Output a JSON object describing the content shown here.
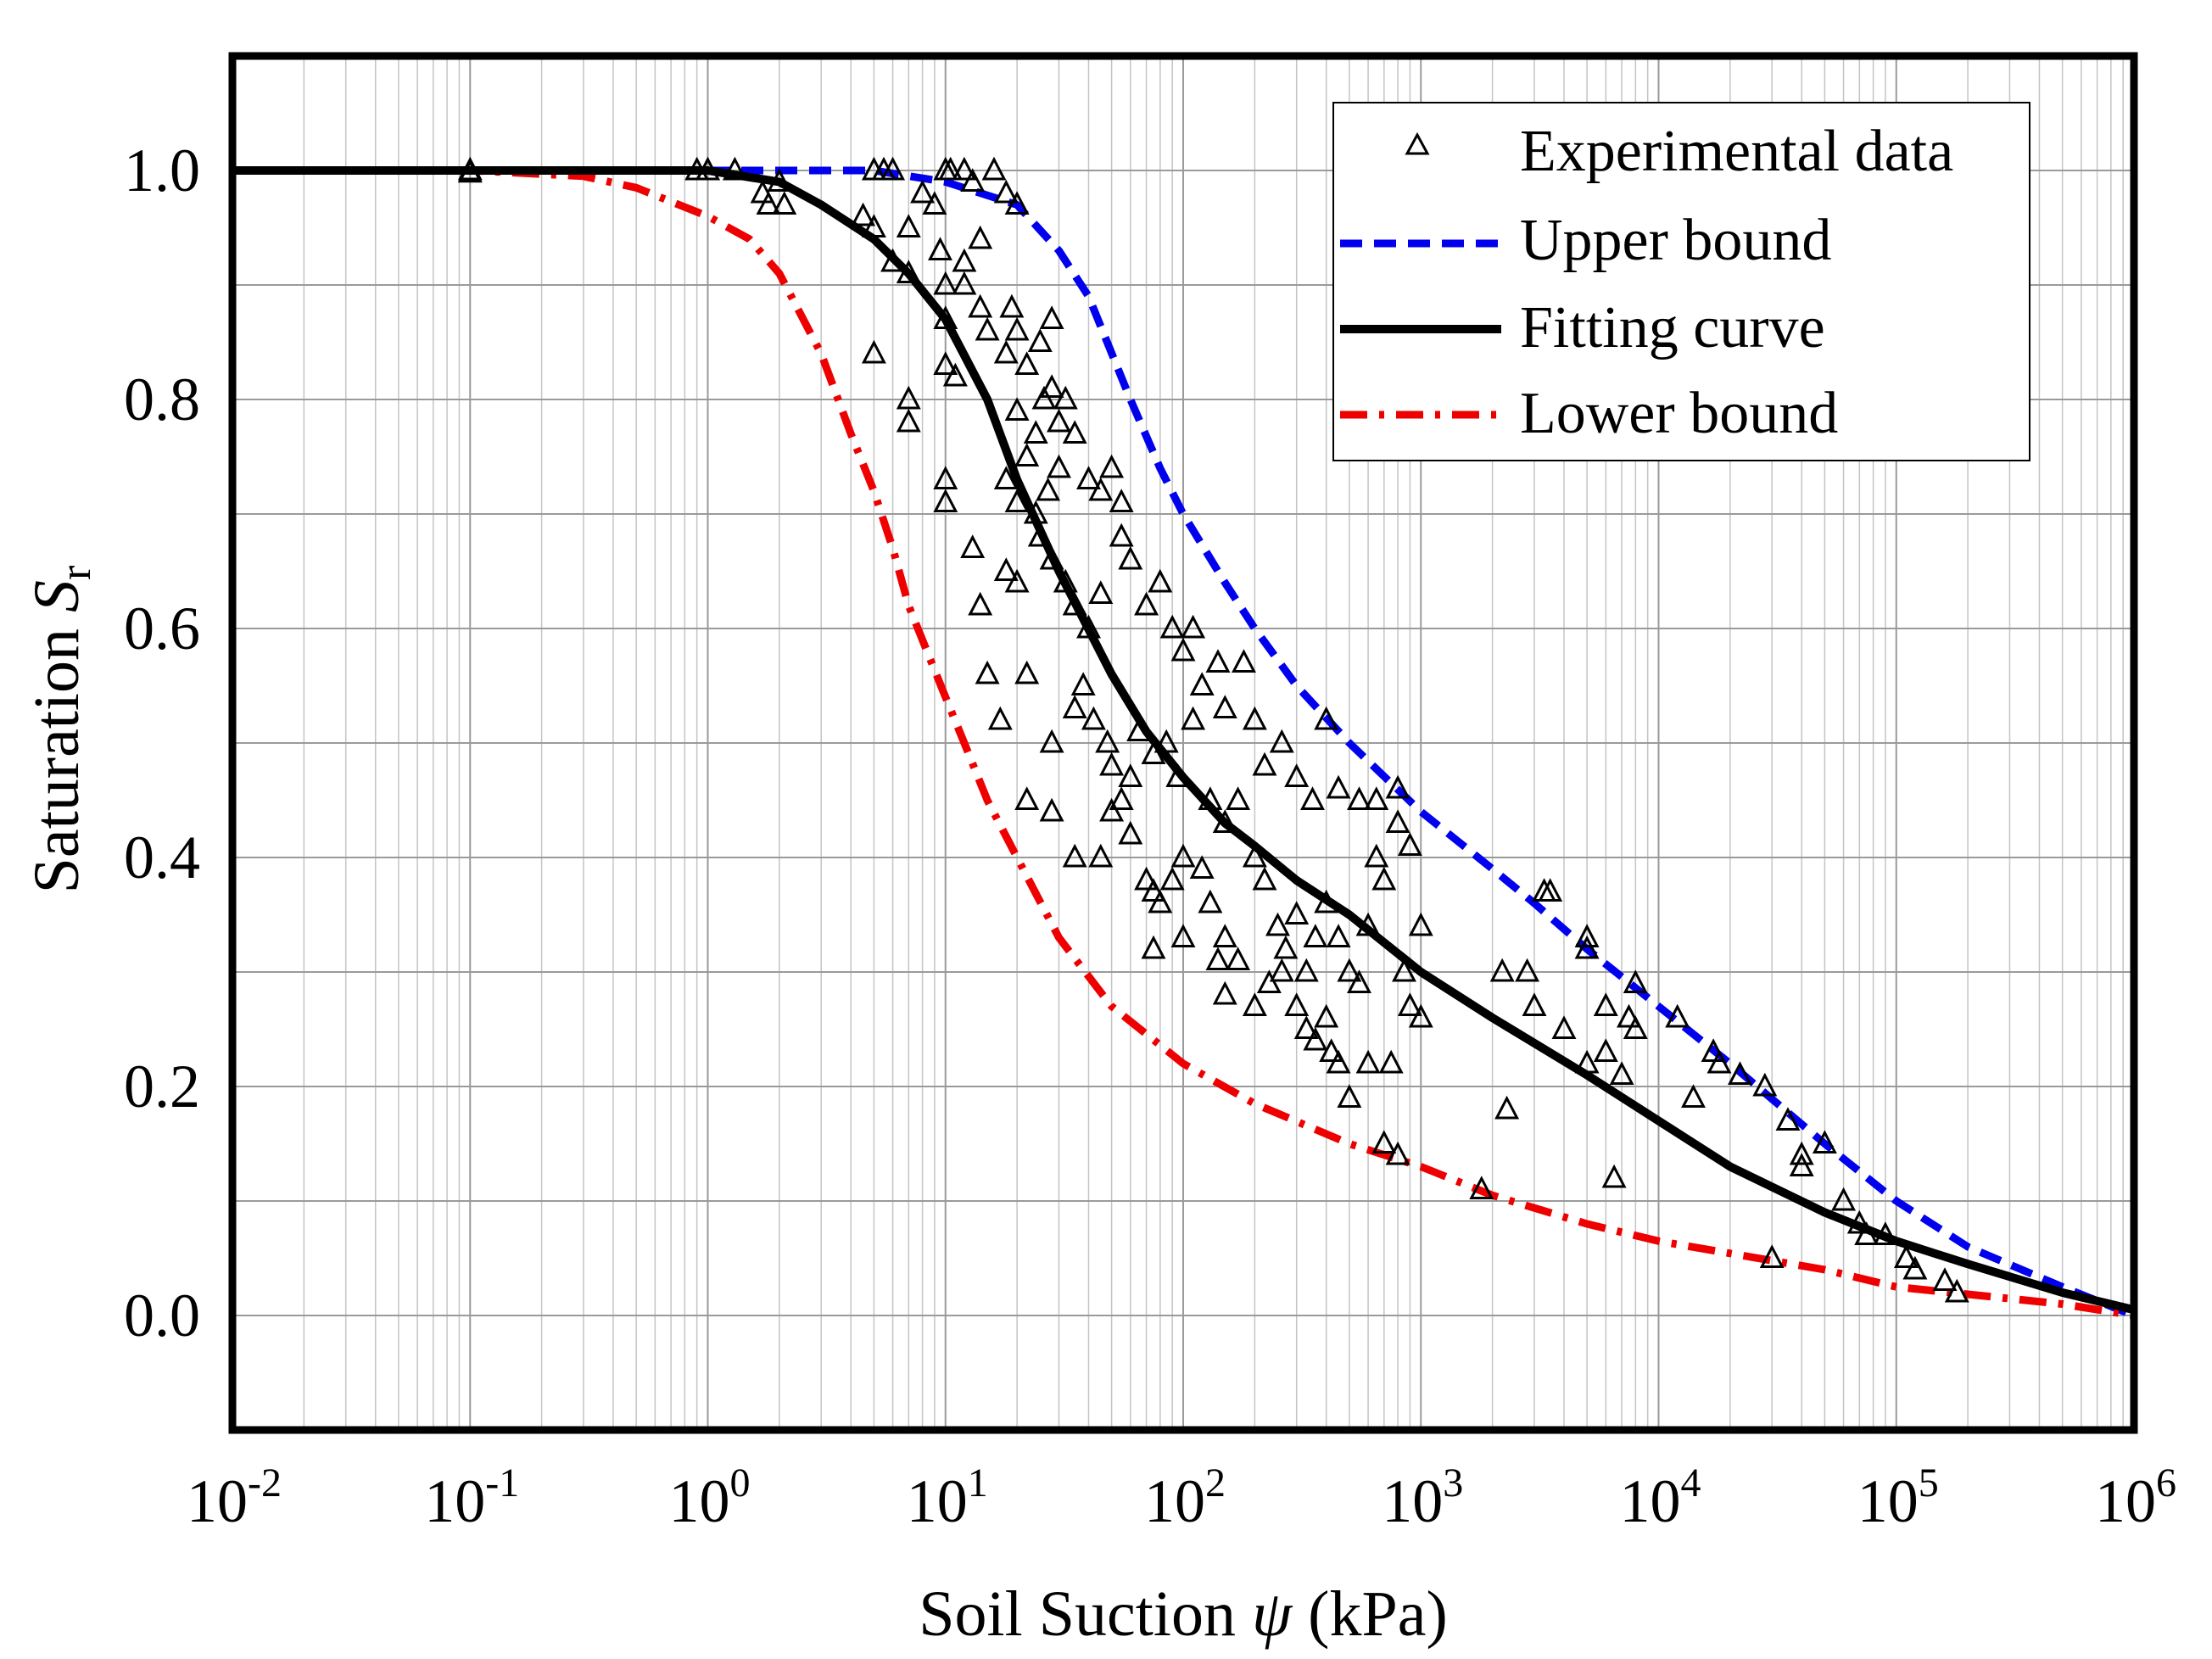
{
  "chart_data": {
    "type": "scatter",
    "xscale": "log",
    "xlim": [
      0.01,
      1000000
    ],
    "ylim": [
      -0.1,
      1.1
    ],
    "grid": true,
    "legend_position": "top-right",
    "xlabel": {
      "prefix": "Soil Suction ",
      "symbol": "ψ",
      "suffix": " (kPa)"
    },
    "ylabel": {
      "prefix": "Saturation ",
      "symbol": "S",
      "subscript": "r"
    },
    "x_ticks": [
      {
        "base": "10",
        "exp": "-2"
      },
      {
        "base": "10",
        "exp": "-1"
      },
      {
        "base": "10",
        "exp": "0"
      },
      {
        "base": "10",
        "exp": "1"
      },
      {
        "base": "10",
        "exp": "2"
      },
      {
        "base": "10",
        "exp": "3"
      },
      {
        "base": "10",
        "exp": "4"
      },
      {
        "base": "10",
        "exp": "5"
      },
      {
        "base": "10",
        "exp": "6"
      }
    ],
    "y_ticks": [
      "0.0",
      "0.2",
      "0.4",
      "0.6",
      "0.8",
      "1.0"
    ],
    "legend": {
      "experimental": "Experimental data",
      "upper": "Upper bound",
      "fitting": "Fitting curve",
      "lower": "Lower bound"
    },
    "colors": {
      "experimental": "#000000",
      "upper": "#0000ee",
      "fitting": "#000000",
      "lower": "#ee0000"
    },
    "series": [
      {
        "name": "Upper bound",
        "style": "dashed",
        "color": "#0000ee",
        "x": [
          0.01,
          1,
          2,
          5,
          10,
          20,
          30,
          40,
          60,
          80,
          100,
          150,
          200,
          300,
          500,
          1000,
          2000,
          3000,
          5000,
          10000,
          20000,
          50000,
          100000,
          200000,
          500000,
          1000000
        ],
        "y": [
          1.0,
          1.0,
          1.0,
          1.0,
          0.99,
          0.97,
          0.93,
          0.89,
          0.8,
          0.74,
          0.7,
          0.64,
          0.6,
          0.55,
          0.5,
          0.44,
          0.39,
          0.36,
          0.32,
          0.27,
          0.22,
          0.15,
          0.1,
          0.06,
          0.025,
          0.0
        ]
      },
      {
        "name": "Fitting curve",
        "style": "solid",
        "color": "#000000",
        "x": [
          0.01,
          1,
          2,
          3,
          5,
          7,
          10,
          15,
          20,
          30,
          50,
          70,
          100,
          150,
          200,
          300,
          500,
          1000,
          2000,
          5000,
          10000,
          20000,
          50000,
          100000,
          200000,
          500000,
          1000000
        ],
        "y": [
          1.0,
          1.0,
          0.99,
          0.97,
          0.94,
          0.91,
          0.87,
          0.8,
          0.73,
          0.65,
          0.56,
          0.51,
          0.47,
          0.43,
          0.41,
          0.38,
          0.35,
          0.3,
          0.26,
          0.21,
          0.17,
          0.13,
          0.09,
          0.065,
          0.045,
          0.02,
          0.005
        ]
      },
      {
        "name": "Lower bound",
        "style": "dashdot",
        "color": "#ee0000",
        "x": [
          0.01,
          0.1,
          0.3,
          0.5,
          1,
          1.5,
          2,
          3,
          4,
          5,
          6,
          7,
          8,
          10,
          12,
          15,
          20,
          30,
          50,
          100,
          200,
          500,
          1000,
          2000,
          5000,
          10000,
          50000,
          100000,
          500000,
          1000000
        ],
        "y": [
          1.0,
          1.0,
          0.995,
          0.985,
          0.96,
          0.94,
          0.91,
          0.84,
          0.77,
          0.72,
          0.67,
          0.62,
          0.59,
          0.54,
          0.5,
          0.45,
          0.4,
          0.33,
          0.27,
          0.22,
          0.185,
          0.15,
          0.13,
          0.105,
          0.08,
          0.065,
          0.04,
          0.025,
          0.01,
          0.0
        ]
      }
    ],
    "experimental_data": [
      [
        0.1,
        1.0
      ],
      [
        0.1,
        0.998
      ],
      [
        0.9,
        1.0
      ],
      [
        1.0,
        1.0
      ],
      [
        1.0,
        1.0
      ],
      [
        1.3,
        1.0
      ],
      [
        1.8,
        0.97
      ],
      [
        2.0,
        0.99
      ],
      [
        1.7,
        0.98
      ],
      [
        2.1,
        0.97
      ],
      [
        4.5,
        0.96
      ],
      [
        5.0,
        1.0
      ],
      [
        5.5,
        1.0
      ],
      [
        6.0,
        1.0
      ],
      [
        5.0,
        0.95
      ],
      [
        6.0,
        0.92
      ],
      [
        7.0,
        0.91
      ],
      [
        7.0,
        0.95
      ],
      [
        8.0,
        0.98
      ],
      [
        9.0,
        0.97
      ],
      [
        9.5,
        0.93
      ],
      [
        10.0,
        1.0
      ],
      [
        10.5,
        1.0
      ],
      [
        12.0,
        1.0
      ],
      [
        13.0,
        0.99
      ],
      [
        16.0,
        1.0
      ],
      [
        18.0,
        0.98
      ],
      [
        20.0,
        0.97
      ],
      [
        5.0,
        0.84
      ],
      [
        7.0,
        0.8
      ],
      [
        7.0,
        0.78
      ],
      [
        10.0,
        0.9
      ],
      [
        10.0,
        0.87
      ],
      [
        12.0,
        0.9
      ],
      [
        14.0,
        0.88
      ],
      [
        10.0,
        0.83
      ],
      [
        11.0,
        0.82
      ],
      [
        12.0,
        0.92
      ],
      [
        14.0,
        0.94
      ],
      [
        15.0,
        0.86
      ],
      [
        18.0,
        0.84
      ],
      [
        19.0,
        0.88
      ],
      [
        20.0,
        0.86
      ],
      [
        22.0,
        0.83
      ],
      [
        25.0,
        0.85
      ],
      [
        28.0,
        0.87
      ],
      [
        20.0,
        0.79
      ],
      [
        22.0,
        0.75
      ],
      [
        24.0,
        0.77
      ],
      [
        26.0,
        0.8
      ],
      [
        28.0,
        0.81
      ],
      [
        30.0,
        0.78
      ],
      [
        32.0,
        0.8
      ],
      [
        35.0,
        0.77
      ],
      [
        18.0,
        0.73
      ],
      [
        20.0,
        0.71
      ],
      [
        24.0,
        0.7
      ],
      [
        27.0,
        0.72
      ],
      [
        30.0,
        0.74
      ],
      [
        40.0,
        0.73
      ],
      [
        45.0,
        0.72
      ],
      [
        50.0,
        0.74
      ],
      [
        55.0,
        0.71
      ],
      [
        10.0,
        0.73
      ],
      [
        10.0,
        0.71
      ],
      [
        13.0,
        0.67
      ],
      [
        14.0,
        0.62
      ],
      [
        18.0,
        0.65
      ],
      [
        20.0,
        0.64
      ],
      [
        25.0,
        0.68
      ],
      [
        28.0,
        0.66
      ],
      [
        32.0,
        0.64
      ],
      [
        35.0,
        0.62
      ],
      [
        40.0,
        0.6
      ],
      [
        45.0,
        0.63
      ],
      [
        55.0,
        0.68
      ],
      [
        60.0,
        0.66
      ],
      [
        70.0,
        0.62
      ],
      [
        80.0,
        0.64
      ],
      [
        90.0,
        0.6
      ],
      [
        100.0,
        0.58
      ],
      [
        110.0,
        0.6
      ],
      [
        120.0,
        0.55
      ],
      [
        140.0,
        0.57
      ],
      [
        150.0,
        0.53
      ],
      [
        180.0,
        0.57
      ],
      [
        15.0,
        0.56
      ],
      [
        17.0,
        0.52
      ],
      [
        22.0,
        0.56
      ],
      [
        28.0,
        0.5
      ],
      [
        35.0,
        0.53
      ],
      [
        38.0,
        0.55
      ],
      [
        42.0,
        0.52
      ],
      [
        48.0,
        0.5
      ],
      [
        50.0,
        0.48
      ],
      [
        55.0,
        0.45
      ],
      [
        60.0,
        0.47
      ],
      [
        65.0,
        0.51
      ],
      [
        75.0,
        0.49
      ],
      [
        85.0,
        0.5
      ],
      [
        95.0,
        0.47
      ],
      [
        110.0,
        0.52
      ],
      [
        130.0,
        0.45
      ],
      [
        150.0,
        0.43
      ],
      [
        170.0,
        0.45
      ],
      [
        200.0,
        0.52
      ],
      [
        220.0,
        0.48
      ],
      [
        260.0,
        0.5
      ],
      [
        300.0,
        0.47
      ],
      [
        350.0,
        0.45
      ],
      [
        400.0,
        0.52
      ],
      [
        450.0,
        0.46
      ],
      [
        550.0,
        0.45
      ],
      [
        650.0,
        0.45
      ],
      [
        800.0,
        0.46
      ],
      [
        22.0,
        0.45
      ],
      [
        28.0,
        0.44
      ],
      [
        35.0,
        0.4
      ],
      [
        45.0,
        0.4
      ],
      [
        50.0,
        0.44
      ],
      [
        60.0,
        0.42
      ],
      [
        70.0,
        0.38
      ],
      [
        75.0,
        0.37
      ],
      [
        80.0,
        0.36
      ],
      [
        90.0,
        0.38
      ],
      [
        100.0,
        0.4
      ],
      [
        120.0,
        0.39
      ],
      [
        130.0,
        0.36
      ],
      [
        150.0,
        0.33
      ],
      [
        170.0,
        0.31
      ],
      [
        200.0,
        0.4
      ],
      [
        220.0,
        0.38
      ],
      [
        250.0,
        0.34
      ],
      [
        270.0,
        0.32
      ],
      [
        300.0,
        0.35
      ],
      [
        330.0,
        0.3
      ],
      [
        360.0,
        0.33
      ],
      [
        400.0,
        0.36
      ],
      [
        450.0,
        0.33
      ],
      [
        500.0,
        0.3
      ],
      [
        550.0,
        0.29
      ],
      [
        600.0,
        0.34
      ],
      [
        650.0,
        0.4
      ],
      [
        700.0,
        0.38
      ],
      [
        800.0,
        0.43
      ],
      [
        900.0,
        0.41
      ],
      [
        1000.0,
        0.34
      ],
      [
        75.0,
        0.32
      ],
      [
        100.0,
        0.33
      ],
      [
        140.0,
        0.31
      ],
      [
        150.0,
        0.28
      ],
      [
        200.0,
        0.27
      ],
      [
        230.0,
        0.29
      ],
      [
        260.0,
        0.3
      ],
      [
        300.0,
        0.27
      ],
      [
        330.0,
        0.25
      ],
      [
        360.0,
        0.24
      ],
      [
        400.0,
        0.26
      ],
      [
        420.0,
        0.23
      ],
      [
        450.0,
        0.22
      ],
      [
        500.0,
        0.19
      ],
      [
        600.0,
        0.22
      ],
      [
        700.0,
        0.15
      ],
      [
        750.0,
        0.22
      ],
      [
        800.0,
        0.14
      ],
      [
        850.0,
        0.3
      ],
      [
        900.0,
        0.27
      ],
      [
        1000.0,
        0.26
      ],
      [
        1800.0,
        0.11
      ],
      [
        2200.0,
        0.3
      ],
      [
        2300.0,
        0.18
      ],
      [
        2800.0,
        0.3
      ],
      [
        3000.0,
        0.27
      ],
      [
        3300.0,
        0.37
      ],
      [
        3500.0,
        0.37
      ],
      [
        4000.0,
        0.25
      ],
      [
        5000.0,
        0.33
      ],
      [
        5000.0,
        0.32
      ],
      [
        5000.0,
        0.22
      ],
      [
        6000.0,
        0.27
      ],
      [
        6000.0,
        0.23
      ],
      [
        6500.0,
        0.12
      ],
      [
        7000.0,
        0.21
      ],
      [
        7500.0,
        0.26
      ],
      [
        8000.0,
        0.25
      ],
      [
        8000.0,
        0.29
      ],
      [
        12000.0,
        0.26
      ],
      [
        14000.0,
        0.19
      ],
      [
        17000.0,
        0.23
      ],
      [
        18000.0,
        0.22
      ],
      [
        22000.0,
        0.21
      ],
      [
        28000.0,
        0.2
      ],
      [
        30000.0,
        0.05
      ],
      [
        35000.0,
        0.17
      ],
      [
        40000.0,
        0.14
      ],
      [
        40000.0,
        0.13
      ],
      [
        50000.0,
        0.15
      ],
      [
        60000.0,
        0.1
      ],
      [
        70000.0,
        0.08
      ],
      [
        75000.0,
        0.07
      ],
      [
        90000.0,
        0.07
      ],
      [
        110000.0,
        0.05
      ],
      [
        120000.0,
        0.04
      ],
      [
        160000.0,
        0.03
      ],
      [
        180000.0,
        0.02
      ]
    ]
  }
}
